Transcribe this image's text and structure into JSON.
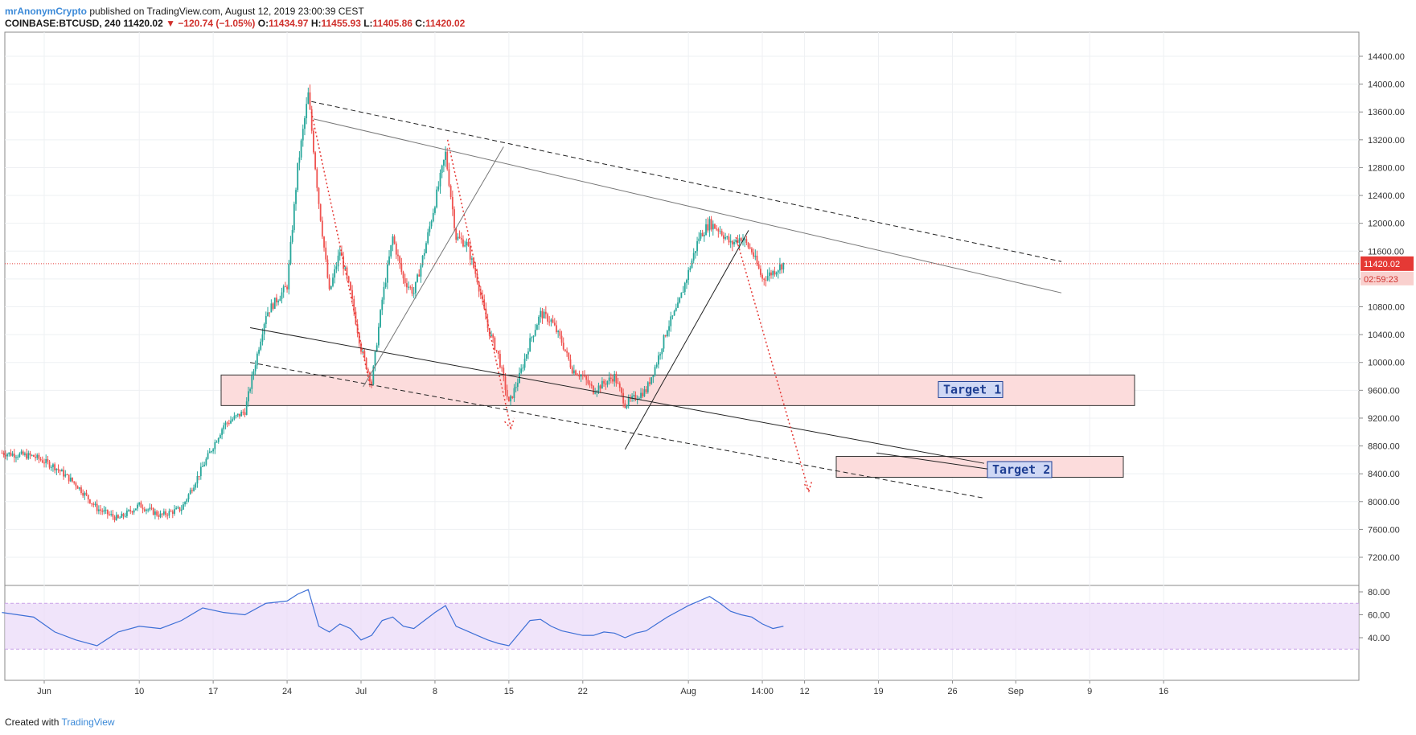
{
  "header": {
    "author": "mrAnonymCrypto",
    "published": "published on TradingView.com, August 12, 2019 23:00:39 CEST",
    "symbol": "COINBASE:BTCUSD, 240",
    "last": "11420.02",
    "change": "▼ −120.74 (−1.05%)",
    "o_label": "O:",
    "o_value": "11434.97",
    "h_label": "H:",
    "h_value": "11455.93",
    "l_label": "L:",
    "l_value": "11405.86",
    "c_label": "C:",
    "c_value": "11420.02"
  },
  "footer": {
    "created": "Created with",
    "brand": "TradingView"
  },
  "colors": {
    "up": "#26a69a",
    "down": "#ef5350",
    "rsi": "#3d6fd6",
    "rsi_band": "#ead9f8",
    "zone": "#fcdcdc",
    "price_line": "#e53935"
  },
  "chart_data": {
    "type": "candlestick",
    "price_axis": {
      "ticks": [
        7200,
        7600,
        8000,
        8400,
        8800,
        9200,
        9600,
        10000,
        10400,
        10800,
        11200,
        11600,
        12000,
        12400,
        12800,
        13200,
        13600,
        14000,
        14400
      ],
      "tick_labels": [
        "7200.00",
        "7600.00",
        "8000.00",
        "8400.00",
        "8800.00",
        "9200.00",
        "9600.00",
        "10000.00",
        "10400.00",
        "10800.00",
        "11200.00",
        "11600.00",
        "12000.00",
        "12400.00",
        "12800.00",
        "13200.00",
        "13600.00",
        "14000.00",
        "14400.00"
      ]
    },
    "time_axis": {
      "labels": [
        "Jun",
        "10",
        "17",
        "24",
        "Jul",
        "8",
        "15",
        "22",
        "Aug",
        "14:00",
        "12",
        "19",
        "26",
        "Sep",
        "9",
        "16"
      ],
      "days": [
        1,
        10,
        17,
        24,
        31,
        38,
        45,
        52,
        62,
        69,
        73,
        80,
        87,
        93,
        100,
        107
      ]
    },
    "last_price": {
      "value": 11420.02,
      "label": "11420.02",
      "countdown": "02:59:23"
    },
    "price_path": [
      [
        -3,
        8700
      ],
      [
        0,
        8650
      ],
      [
        2,
        8500
      ],
      [
        4,
        8250
      ],
      [
        6,
        7900
      ],
      [
        8,
        7750
      ],
      [
        10,
        7950
      ],
      [
        12,
        7800
      ],
      [
        14,
        7900
      ],
      [
        16,
        8500
      ],
      [
        18,
        9100
      ],
      [
        20,
        9300
      ],
      [
        22,
        10700
      ],
      [
        24,
        11100
      ],
      [
        25,
        12800
      ],
      [
        26,
        13850
      ],
      [
        27,
        12300
      ],
      [
        28,
        11000
      ],
      [
        29,
        11600
      ],
      [
        30,
        11000
      ],
      [
        31,
        10200
      ],
      [
        32,
        9700
      ],
      [
        33,
        10900
      ],
      [
        34,
        11800
      ],
      [
        35,
        11200
      ],
      [
        36,
        11000
      ],
      [
        37,
        11600
      ],
      [
        38,
        12300
      ],
      [
        39,
        13000
      ],
      [
        40,
        11800
      ],
      [
        41,
        11700
      ],
      [
        42,
        11200
      ],
      [
        43,
        10500
      ],
      [
        44,
        10100
      ],
      [
        45,
        9400
      ],
      [
        46,
        9800
      ],
      [
        47,
        10300
      ],
      [
        48,
        10700
      ],
      [
        49,
        10600
      ],
      [
        50,
        10300
      ],
      [
        51,
        9900
      ],
      [
        52,
        9800
      ],
      [
        53,
        9600
      ],
      [
        54,
        9700
      ],
      [
        55,
        9800
      ],
      [
        56,
        9400
      ],
      [
        57,
        9500
      ],
      [
        58,
        9600
      ],
      [
        59,
        10000
      ],
      [
        60,
        10500
      ],
      [
        61,
        10800
      ],
      [
        62,
        11300
      ],
      [
        63,
        11800
      ],
      [
        64,
        12000
      ],
      [
        65,
        11900
      ],
      [
        66,
        11700
      ],
      [
        67,
        11800
      ],
      [
        68,
        11600
      ],
      [
        69,
        11200
      ],
      [
        70,
        11300
      ],
      [
        71,
        11420.02
      ]
    ],
    "rsi": {
      "ticks": [
        40,
        60,
        80
      ],
      "tick_labels": [
        "40.00",
        "60.00",
        "80.00"
      ],
      "band": [
        30,
        70
      ],
      "path": [
        [
          -3,
          62
        ],
        [
          0,
          58
        ],
        [
          2,
          45
        ],
        [
          4,
          38
        ],
        [
          6,
          33
        ],
        [
          8,
          45
        ],
        [
          10,
          50
        ],
        [
          12,
          48
        ],
        [
          14,
          55
        ],
        [
          16,
          66
        ],
        [
          18,
          62
        ],
        [
          20,
          60
        ],
        [
          22,
          70
        ],
        [
          24,
          72
        ],
        [
          25,
          78
        ],
        [
          26,
          82
        ],
        [
          27,
          50
        ],
        [
          28,
          45
        ],
        [
          29,
          52
        ],
        [
          30,
          48
        ],
        [
          31,
          38
        ],
        [
          32,
          42
        ],
        [
          33,
          55
        ],
        [
          34,
          58
        ],
        [
          35,
          50
        ],
        [
          36,
          48
        ],
        [
          37,
          55
        ],
        [
          38,
          62
        ],
        [
          39,
          68
        ],
        [
          40,
          50
        ],
        [
          41,
          46
        ],
        [
          42,
          42
        ],
        [
          43,
          38
        ],
        [
          44,
          35
        ],
        [
          45,
          33
        ],
        [
          46,
          44
        ],
        [
          47,
          55
        ],
        [
          48,
          56
        ],
        [
          49,
          50
        ],
        [
          50,
          46
        ],
        [
          51,
          44
        ],
        [
          52,
          42
        ],
        [
          53,
          42
        ],
        [
          54,
          45
        ],
        [
          55,
          44
        ],
        [
          56,
          40
        ],
        [
          57,
          44
        ],
        [
          58,
          46
        ],
        [
          59,
          52
        ],
        [
          60,
          58
        ],
        [
          61,
          63
        ],
        [
          62,
          68
        ],
        [
          63,
          72
        ],
        [
          64,
          76
        ],
        [
          65,
          70
        ],
        [
          66,
          63
        ],
        [
          67,
          60
        ],
        [
          68,
          58
        ],
        [
          69,
          52
        ],
        [
          70,
          48
        ],
        [
          71,
          50
        ]
      ]
    },
    "targets": [
      {
        "label": "Target 1",
        "from": 9380,
        "to": 9820
      },
      {
        "label": "Target 2",
        "from": 8350,
        "to": 8650
      }
    ]
  }
}
